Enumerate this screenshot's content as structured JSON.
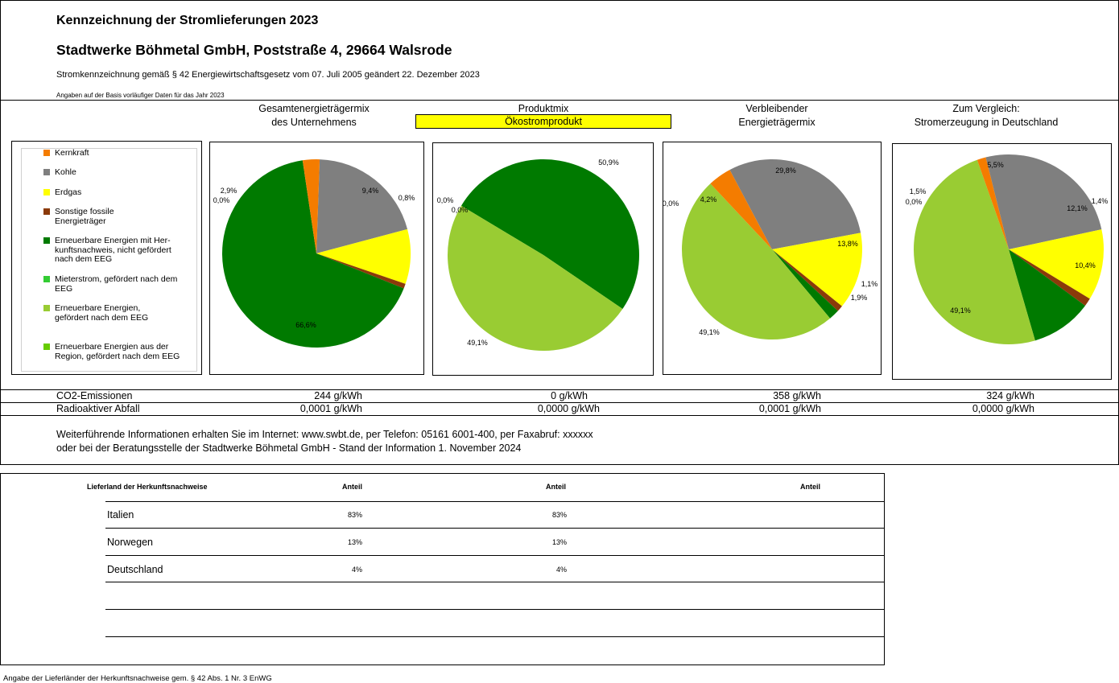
{
  "header": {
    "title": "Kennzeichnung der Stromlieferungen 2023",
    "company": "Stadtwerke Böhmetal GmbH, Poststraße 4, 29664 Walsrode",
    "law_note": "Stromkennzeichnung gemäß § 42 Energiewirtschaftsgesetz vom 07. Juli 2005 geändert 22. Dezember 2023",
    "basis_note": "Angaben auf der Basis vorläufiger Daten für das Jahr 2023"
  },
  "columns": [
    {
      "line1": "Gesamtenergieträgermix",
      "line2": "des Unternehmens"
    },
    {
      "line1": "Produktmix",
      "line2": "Ökostromprodukt"
    },
    {
      "line1": "Verbleibender",
      "line2": "Energieträgermix"
    },
    {
      "line1": "Zum Vergleich:",
      "line2": "Stromerzeugung in Deutschland"
    }
  ],
  "legend": [
    {
      "label": "Kernkraft",
      "color": "#f47c00"
    },
    {
      "label": "Kohle",
      "color": "#7f7f7f"
    },
    {
      "label": "Erdgas",
      "color": "#ffff00"
    },
    {
      "label": "Sonstige fossile Energieträger",
      "color": "#8b3a0a"
    },
    {
      "label": "Erneuerbare Energien mit Her-kunftsnachweis, nicht gefördert nach dem EEG",
      "color": "#007a00"
    },
    {
      "label": "Mieterstrom, gefördert nach dem EEG",
      "color": "#33cc33"
    },
    {
      "label": "Erneuerbare Energien, gefördert nach dem EEG",
      "color": "#99cc33"
    },
    {
      "label": "Erneuerbare Energien aus der Region, gefördert nach dem EEG",
      "color": "#66cc00"
    }
  ],
  "chart_data": [
    {
      "type": "pie",
      "slices": [
        {
          "category": "Kohle",
          "value": 20.3,
          "label": "20,3%",
          "color": "#7f7f7f"
        },
        {
          "category": "Erdgas",
          "value": 9.4,
          "label": "9,4%",
          "color": "#ffff00"
        },
        {
          "category": "Sonstige fossile Energieträger",
          "value": 0.8,
          "label": "0,8%",
          "color": "#8b3a0a"
        },
        {
          "category": "Erneuerbare Energien mit Herkunftsnachweis, nicht gefördert nach dem EEG",
          "value": 66.6,
          "label": "66,6%",
          "color": "#007a00"
        },
        {
          "category": "Mieterstrom, gefördert nach dem EEG",
          "value": 0.0,
          "label": "0,0%",
          "color": "#33cc33"
        },
        {
          "category": "Kernkraft",
          "value": 2.9,
          "label": "2,9%",
          "color": "#f47c00"
        }
      ]
    },
    {
      "type": "pie",
      "slices": [
        {
          "category": "Erneuerbare Energien mit Herkunftsnachweis, nicht gefördert nach dem EEG",
          "value": 50.9,
          "label": "50,9%",
          "color": "#007a00"
        },
        {
          "category": "Erneuerbare Energien, gefördert nach dem EEG",
          "value": 49.1,
          "label": "49,1%",
          "color": "#99cc33"
        },
        {
          "category": "Kernkraft",
          "value": 0.0,
          "label": "0,0%",
          "color": "#f47c00"
        },
        {
          "category": "Kohle",
          "value": 0.0,
          "label": "0,0%",
          "color": "#7f7f7f"
        }
      ]
    },
    {
      "type": "pie",
      "slices": [
        {
          "category": "Kohle",
          "value": 29.8,
          "label": "29,8%",
          "color": "#7f7f7f"
        },
        {
          "category": "Erdgas",
          "value": 13.8,
          "label": "13,8%",
          "color": "#ffff00"
        },
        {
          "category": "Sonstige fossile Energieträger",
          "value": 1.1,
          "label": "1,1%",
          "color": "#8b3a0a"
        },
        {
          "category": "Erneuerbare Energien mit Herkunftsnachweis, nicht gefördert nach dem EEG",
          "value": 1.9,
          "label": "1,9%",
          "color": "#007a00"
        },
        {
          "category": "Erneuerbare Energien, gefördert nach dem EEG",
          "value": 49.1,
          "label": "49,1%",
          "color": "#99cc33"
        },
        {
          "category": "Mieterstrom, gefördert nach dem EEG",
          "value": 0.0,
          "label": "0,0%",
          "color": "#33cc33"
        },
        {
          "category": "Kernkraft",
          "value": 4.2,
          "label": "4,2%",
          "color": "#f47c00"
        }
      ]
    },
    {
      "type": "pie",
      "slices": [
        {
          "category": "Kohle",
          "value": 25.5,
          "label": "25,5%",
          "color": "#7f7f7f"
        },
        {
          "category": "Erdgas",
          "value": 12.1,
          "label": "12,1%",
          "color": "#ffff00"
        },
        {
          "category": "Sonstige fossile Energieträger",
          "value": 1.4,
          "label": "1,4%",
          "color": "#8b3a0a"
        },
        {
          "category": "Erneuerbare Energien mit Herkunftsnachweis, nicht gefördert nach dem EEG",
          "value": 10.4,
          "label": "10,4%",
          "color": "#007a00"
        },
        {
          "category": "Erneuerbare Energien, gefördert nach dem EEG",
          "value": 49.1,
          "label": "49,1%",
          "color": "#99cc33"
        },
        {
          "category": "Mieterstrom, gefördert nach dem EEG",
          "value": 0.0,
          "label": "0,0%",
          "color": "#33cc33"
        },
        {
          "category": "Kernkraft",
          "value": 1.5,
          "label": "1,5%",
          "color": "#f47c00"
        }
      ]
    }
  ],
  "emissions": {
    "co2_label": "CO2-Emissionen",
    "co2_values": [
      "244 g/kWh",
      "0 g/kWh",
      "358 g/kWh",
      "324 g/kWh"
    ],
    "waste_label": "Radioaktiver Abfall",
    "waste_values": [
      "0,0001 g/kWh",
      "0,0000 g/kWh",
      "0,0001 g/kWh",
      "0,0000 g/kWh"
    ]
  },
  "info": {
    "line1": "Weiterführende Informationen erhalten Sie im Internet: www.swbt.de, per Telefon: 05161 6001-400, per Faxabruf: xxxxxx",
    "line2": "oder bei der Beratungsstelle der Stadtwerke Böhmetal GmbH - Stand der Information 1. November 2024"
  },
  "origin_table": {
    "headers": [
      "Lieferland der Herkunftsnachweise",
      "Anteil",
      "Anteil",
      "Anteil"
    ],
    "rows": [
      {
        "country": "Italien",
        "share1": "83%",
        "share2": "83%"
      },
      {
        "country": "Norwegen",
        "share1": "13%",
        "share2": "13%"
      },
      {
        "country": "Deutschland",
        "share1": "4%",
        "share2": "4%"
      }
    ]
  },
  "footnote": "Angabe der Lieferländer der Herkunftsnachweise gem. § 42 Abs. 1 Nr. 3 EnWG"
}
